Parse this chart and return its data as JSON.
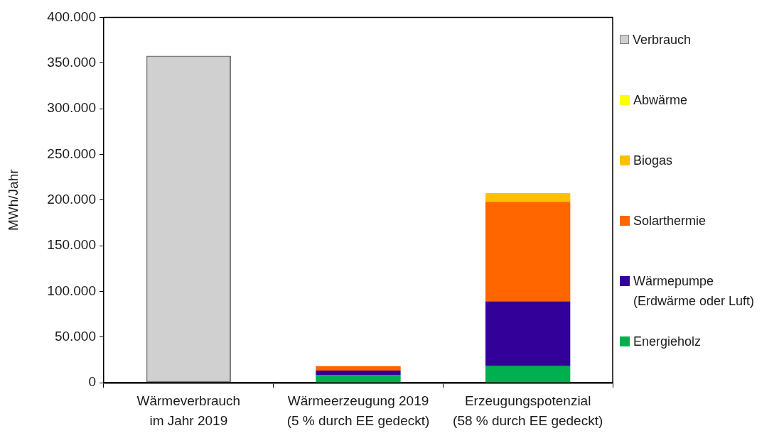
{
  "chart_data": {
    "type": "bar",
    "ylabel": "MWh/Jahr",
    "categories": [
      "Wärmeverbrauch\nim Jahr 2019",
      "Wärmeerzeugung 2019\n(5 % durch EE gedeckt)",
      "Erzeugungspotenzial\n(58 % durch EE gedeckt)"
    ],
    "stacked": true,
    "series": [
      {
        "name": "Energieholz",
        "color": "#00b050",
        "values": [
          null,
          8500,
          18000
        ]
      },
      {
        "name": "Wärmepumpe\n(Erdwärme oder Luft)",
        "color": "#330099",
        "values": [
          null,
          4800,
          71000
        ]
      },
      {
        "name": "Solarthermie",
        "color": "#ff6600",
        "values": [
          null,
          4700,
          109000
        ]
      },
      {
        "name": "Biogas",
        "color": "#ffc000",
        "values": [
          null,
          null,
          9500
        ]
      },
      {
        "name": "Abwärme",
        "color": "#ffff00",
        "values": [
          null,
          null,
          null
        ]
      },
      {
        "name": "Verbrauch",
        "color": "#d0d0d0",
        "values": [
          358000,
          null,
          null
        ]
      }
    ],
    "ylim": [
      0,
      400000
    ],
    "yticks": [
      0,
      {
        "value": 50000,
        "label": "50.000"
      },
      {
        "value": 100000,
        "label": "100.000"
      },
      {
        "value": 150000,
        "label": "150.000"
      },
      {
        "value": 200000,
        "label": "200.000"
      },
      {
        "value": 250000,
        "label": "250.000"
      },
      {
        "value": 300000,
        "label": "300.000"
      },
      {
        "value": 350000,
        "label": "350.000"
      },
      {
        "value": 400000,
        "label": "400.000"
      }
    ],
    "grid": false,
    "legend": "right"
  }
}
